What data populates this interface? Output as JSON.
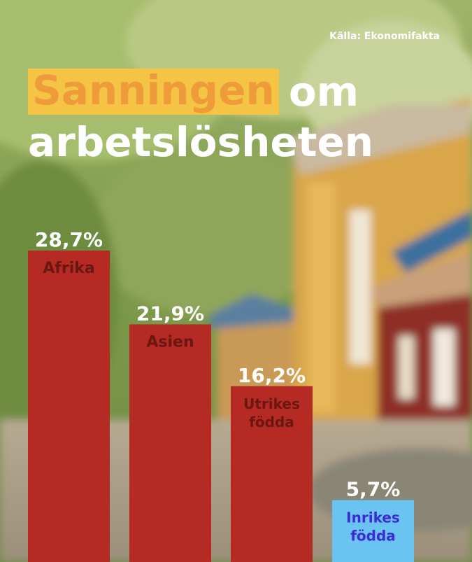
{
  "source": "Källa: Ekonomifakta",
  "title": {
    "highlight": "Sanningen",
    "rest": "om",
    "line2": "arbetslösheten"
  },
  "colors": {
    "bar_default": "#b52a23",
    "bar_highlight": "#6ac3f0",
    "label_default": "#6a1712",
    "label_highlight": "#3a2ad8",
    "title_highlight_bg": "#f6c445",
    "title_highlight_text": "#ee9b3a"
  },
  "chart_data": {
    "type": "bar",
    "categories": [
      "Afrika",
      "Asien",
      "Utrikes födda",
      "Inrikes födda"
    ],
    "values": [
      28.7,
      21.9,
      16.2,
      5.7
    ],
    "value_labels": [
      "28,7%",
      "21,9%",
      "16,2%",
      "5,7%"
    ],
    "category_labels": [
      [
        "Afrika"
      ],
      [
        "Asien"
      ],
      [
        "Utrikes",
        "födda"
      ],
      [
        "Inrikes",
        "födda"
      ]
    ],
    "highlight_index": 3,
    "title": "Sanningen om arbetslösheten",
    "xlabel": "",
    "ylabel": "",
    "grid": false
  }
}
